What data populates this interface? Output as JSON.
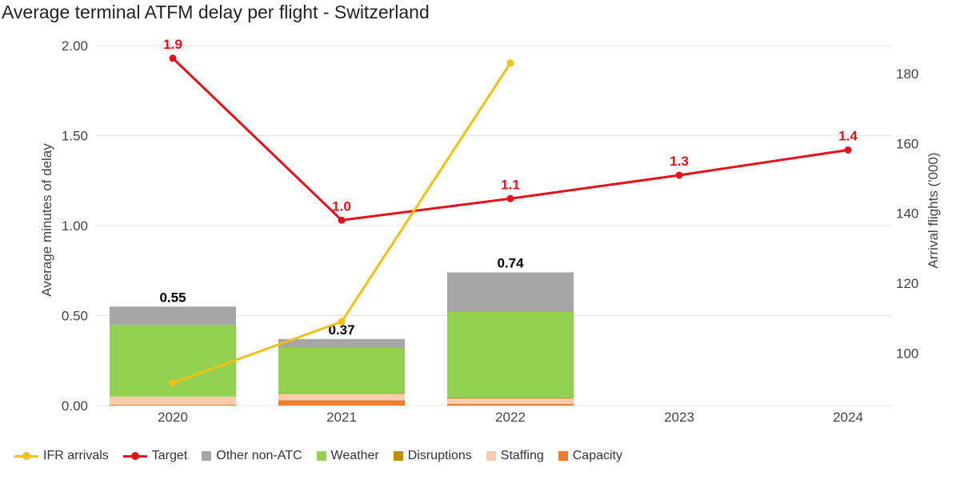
{
  "title": "Average terminal ATFM delay per flight - Switzerland",
  "colors": {
    "ifr_arrivals": "#f5c010",
    "target": "#e8101a",
    "other_non_atc": "#a6a6a6",
    "weather": "#92d050",
    "disruptions": "#bf9000",
    "staffing": "#f8cbad",
    "capacity": "#ed7d31",
    "grid": "#e6e6e6"
  },
  "legend": [
    {
      "label": "IFR arrivals",
      "kind": "line",
      "color_key": "ifr_arrivals"
    },
    {
      "label": "Target",
      "kind": "line",
      "color_key": "target"
    },
    {
      "label": "Other non-ATC",
      "kind": "box",
      "color_key": "other_non_atc"
    },
    {
      "label": "Weather",
      "kind": "box",
      "color_key": "weather"
    },
    {
      "label": "Disruptions",
      "kind": "box",
      "color_key": "disruptions"
    },
    {
      "label": "Staffing",
      "kind": "box",
      "color_key": "staffing"
    },
    {
      "label": "Capacity",
      "kind": "box",
      "color_key": "capacity"
    }
  ],
  "chart_data": {
    "type": "bar",
    "title": "Average terminal ATFM delay per flight - Switzerland",
    "categories": [
      "2020",
      "2021",
      "2022",
      "2023",
      "2024"
    ],
    "ylabel": "Average minutes of delay",
    "y2label": "Arrival flights ('000)",
    "ylim": [
      0,
      2.0
    ],
    "yticks": [
      "0.00",
      "0.50",
      "1.00",
      "1.50",
      "2.00"
    ],
    "y2lim": [
      85,
      188
    ],
    "y2ticks": [
      "100",
      "120",
      "140",
      "160",
      "180"
    ],
    "grid": true,
    "legend_position": "bottom",
    "stacked_series": [
      {
        "name": "Capacity",
        "color_key": "capacity",
        "values": [
          0.005,
          0.03,
          0.01,
          null,
          null
        ]
      },
      {
        "name": "Staffing",
        "color_key": "staffing",
        "values": [
          0.045,
          0.035,
          0.03,
          null,
          null
        ]
      },
      {
        "name": "Disruptions",
        "color_key": "disruptions",
        "values": [
          0.0,
          0.005,
          0.005,
          null,
          null
        ]
      },
      {
        "name": "Weather",
        "color_key": "weather",
        "values": [
          0.4,
          0.25,
          0.475,
          null,
          null
        ]
      },
      {
        "name": "Other non-ATC",
        "color_key": "other_non_atc",
        "values": [
          0.1,
          0.05,
          0.22,
          null,
          null
        ]
      }
    ],
    "totals": [
      0.55,
      0.37,
      0.74,
      null,
      null
    ],
    "total_labels": [
      "0.55",
      "0.37",
      "0.74",
      "",
      ""
    ],
    "target": {
      "name": "Target",
      "color_key": "target",
      "values": [
        1.93,
        1.03,
        1.15,
        1.28,
        1.42
      ],
      "labels": [
        "1.9",
        "1.0",
        "1.1",
        "1.3",
        "1.4"
      ]
    },
    "ifr_arrivals": {
      "name": "IFR arrivals",
      "color_key": "ifr_arrivals",
      "axis": "right",
      "values": [
        91.5,
        109,
        183,
        null,
        null
      ]
    }
  }
}
